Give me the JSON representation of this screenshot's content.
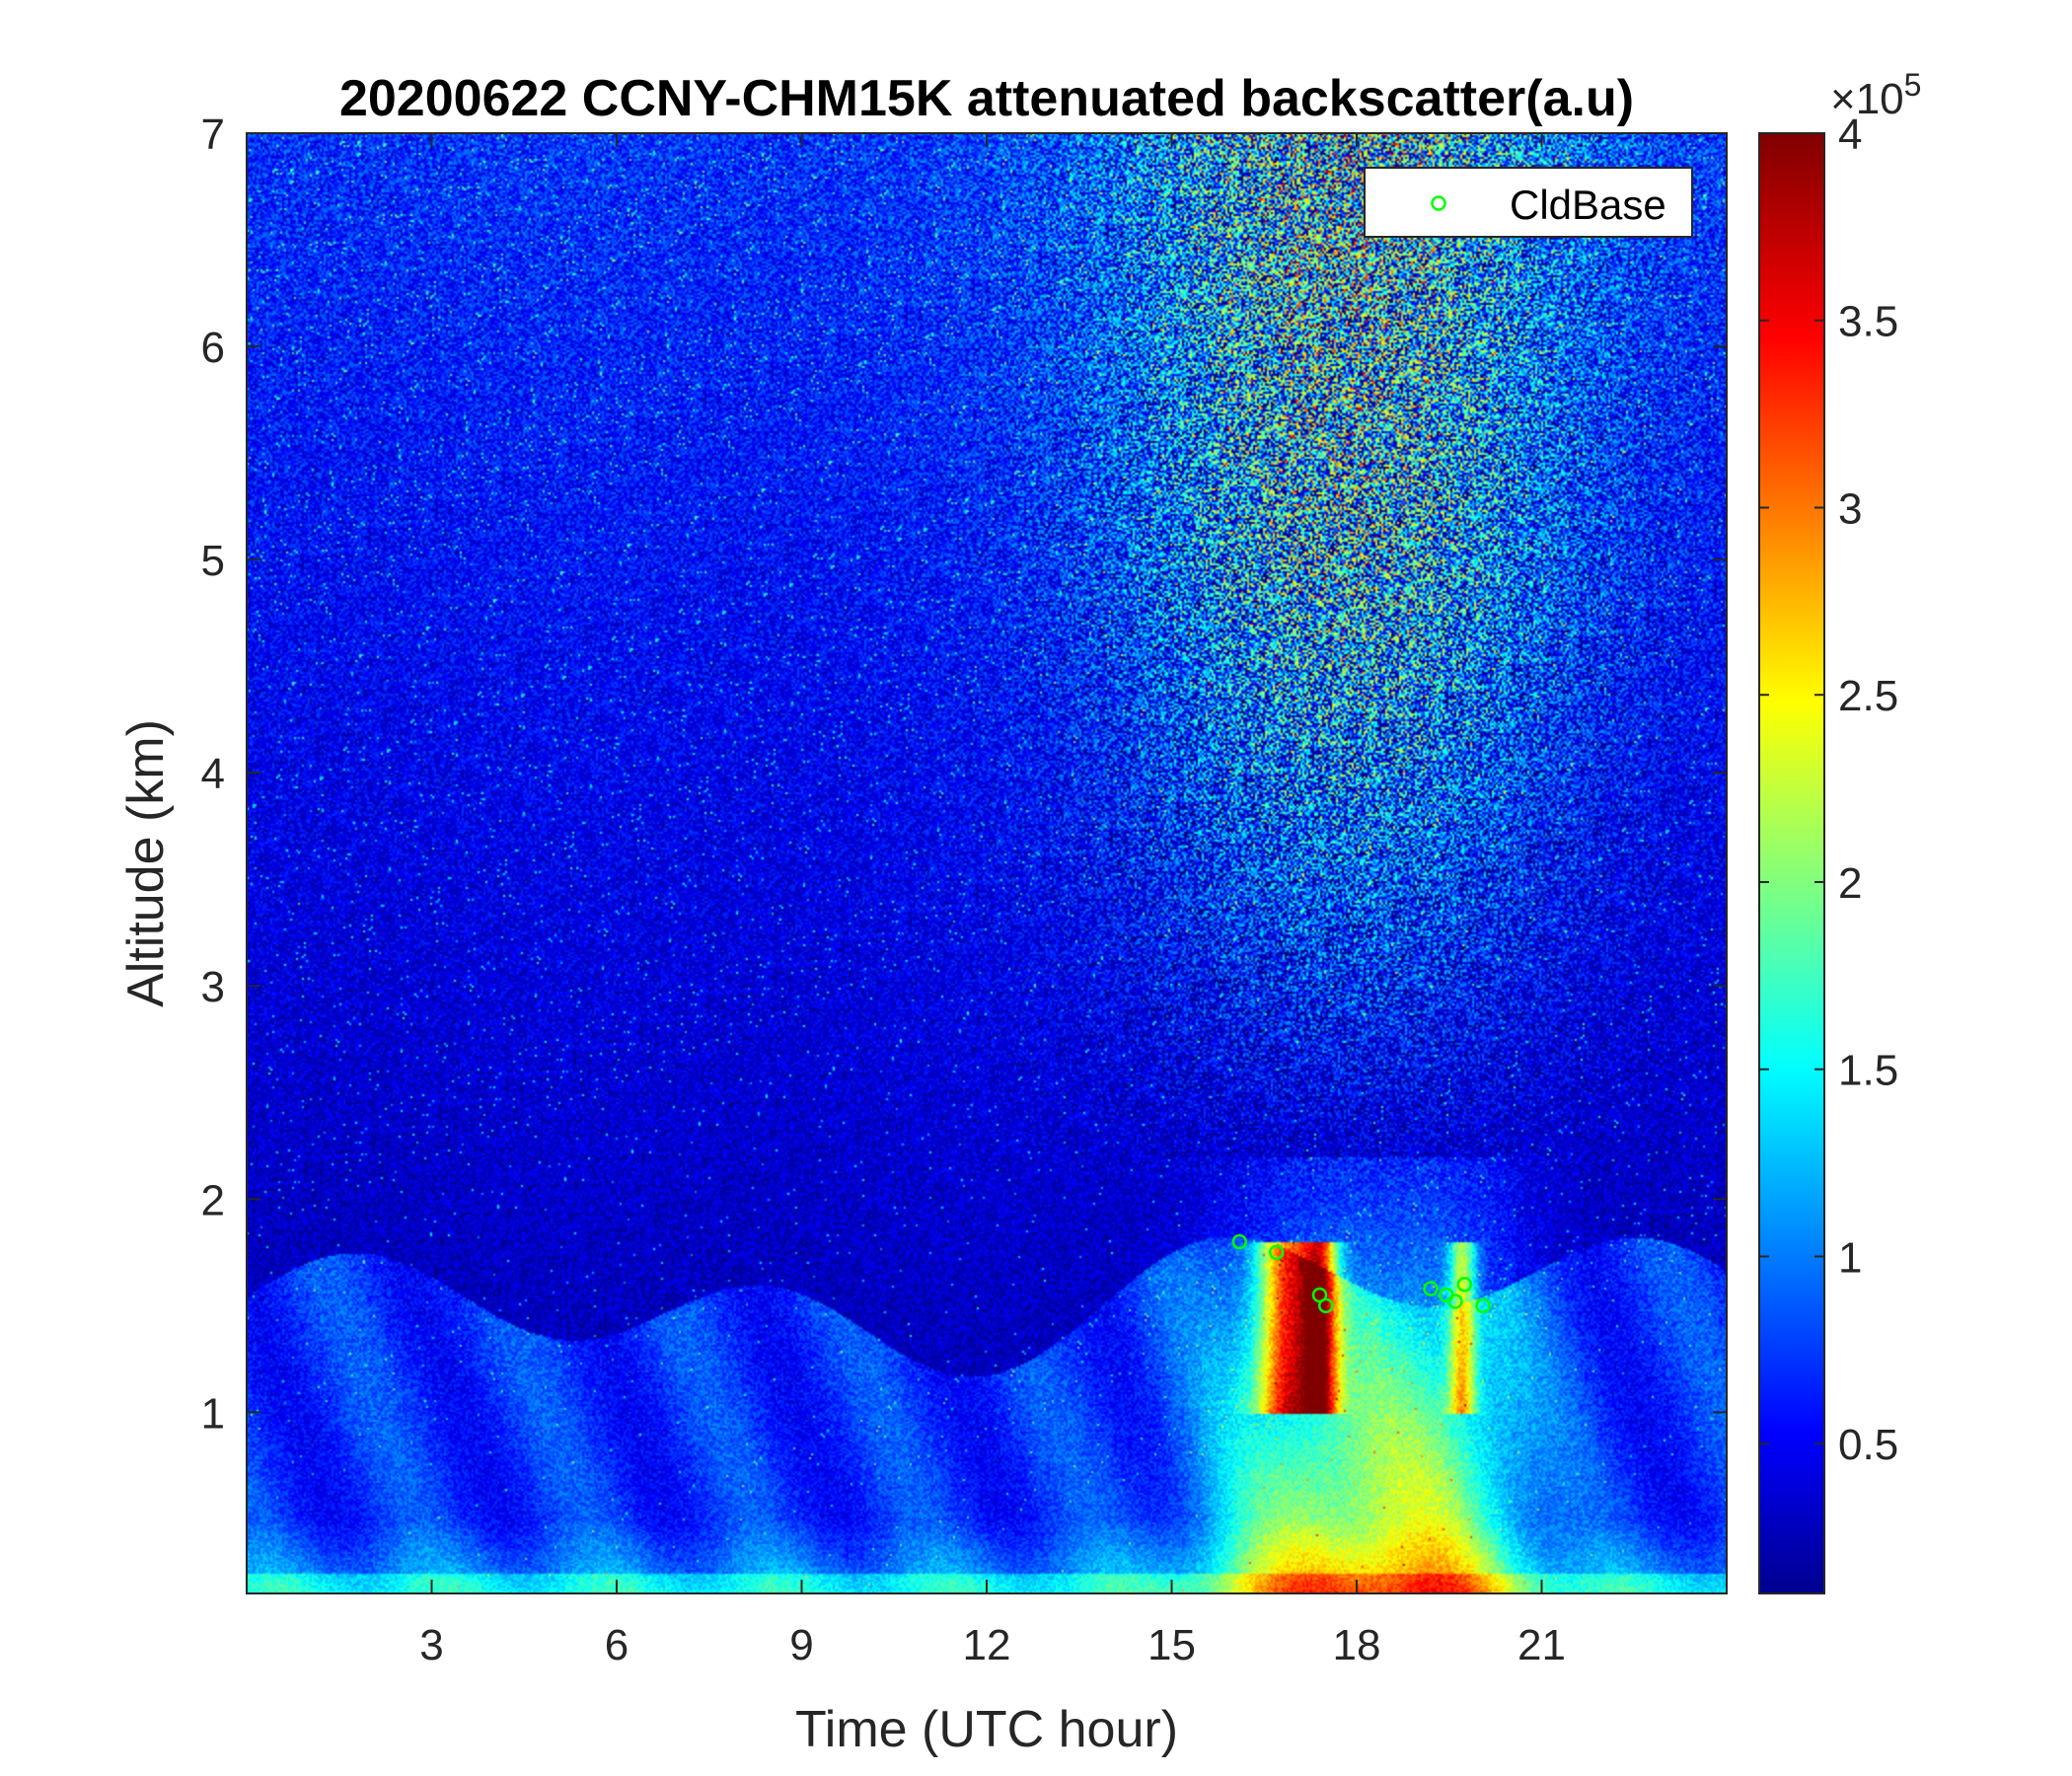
{
  "chart_data": {
    "type": "heatmap",
    "title": "20200622 CCNY-CHM15K attenuated backscatter(a.u)",
    "xlabel": "Time (UTC hour)",
    "ylabel": "Altitude (km)",
    "xlim": [
      0,
      24
    ],
    "ylim": [
      0.15,
      7
    ],
    "x_ticks": [
      3,
      6,
      9,
      12,
      15,
      18,
      21
    ],
    "x_tick_labels": [
      "3",
      "6",
      "9",
      "12",
      "15",
      "18",
      "21"
    ],
    "y_ticks": [
      1,
      2,
      3,
      4,
      5,
      6,
      7
    ],
    "y_tick_labels": [
      "1",
      "2",
      "3",
      "4",
      "5",
      "6",
      "7"
    ],
    "colormap": "jet",
    "color_limits": [
      0.1,
      4.0
    ],
    "colorbar": {
      "ticks": [
        0.5,
        1,
        1.5,
        2,
        2.5,
        3,
        3.5,
        4
      ],
      "tick_labels": [
        "0.5",
        "1",
        "1.5",
        "2",
        "2.5",
        "3",
        "3.5",
        "4"
      ],
      "exponent_prefix": "×10",
      "exponent": "5"
    },
    "legend": {
      "entries": [
        "CldBase"
      ],
      "placement": "top-right",
      "marker_color": "#00ff00"
    },
    "series": [
      {
        "name": "CldBase",
        "x": [
          16.1,
          16.7,
          17.4,
          17.5,
          19.2,
          19.45,
          19.6,
          19.75,
          20.05
        ],
        "y": [
          1.8,
          1.75,
          1.55,
          1.5,
          1.58,
          1.55,
          1.52,
          1.6,
          1.5
        ]
      }
    ],
    "colors": {
      "low": "#00008f",
      "background_field": "#1a3fd6",
      "boundary_layer": "#2f7cf0",
      "surface": "#20e0ff",
      "cloud_high": "#800000"
    }
  }
}
